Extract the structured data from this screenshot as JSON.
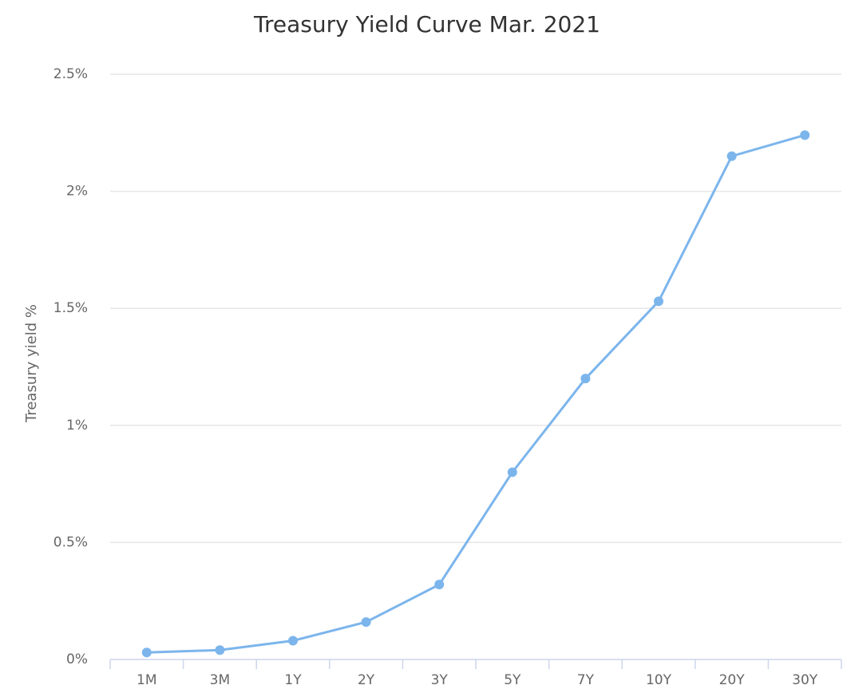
{
  "chart_data": {
    "type": "line",
    "title": "Treasury Yield Curve Mar. 2021",
    "ylabel": "Treasury yield %",
    "categories": [
      "1M",
      "3M",
      "1Y",
      "2Y",
      "3Y",
      "5Y",
      "7Y",
      "10Y",
      "20Y",
      "30Y"
    ],
    "series": [
      {
        "name": "Treasury yield",
        "color": "#7cb5ec",
        "values": [
          0.03,
          0.04,
          0.08,
          0.16,
          0.32,
          0.8,
          1.2,
          1.53,
          2.15,
          2.24
        ]
      }
    ],
    "ylim": [
      0,
      2.5
    ],
    "yticks": [
      {
        "value": 0,
        "label": "0%"
      },
      {
        "value": 0.5,
        "label": "0.5%"
      },
      {
        "value": 1,
        "label": "1%"
      },
      {
        "value": 1.5,
        "label": "1.5%"
      },
      {
        "value": 2,
        "label": "2%"
      },
      {
        "value": 2.5,
        "label": "2.5%"
      }
    ],
    "grid": true
  }
}
